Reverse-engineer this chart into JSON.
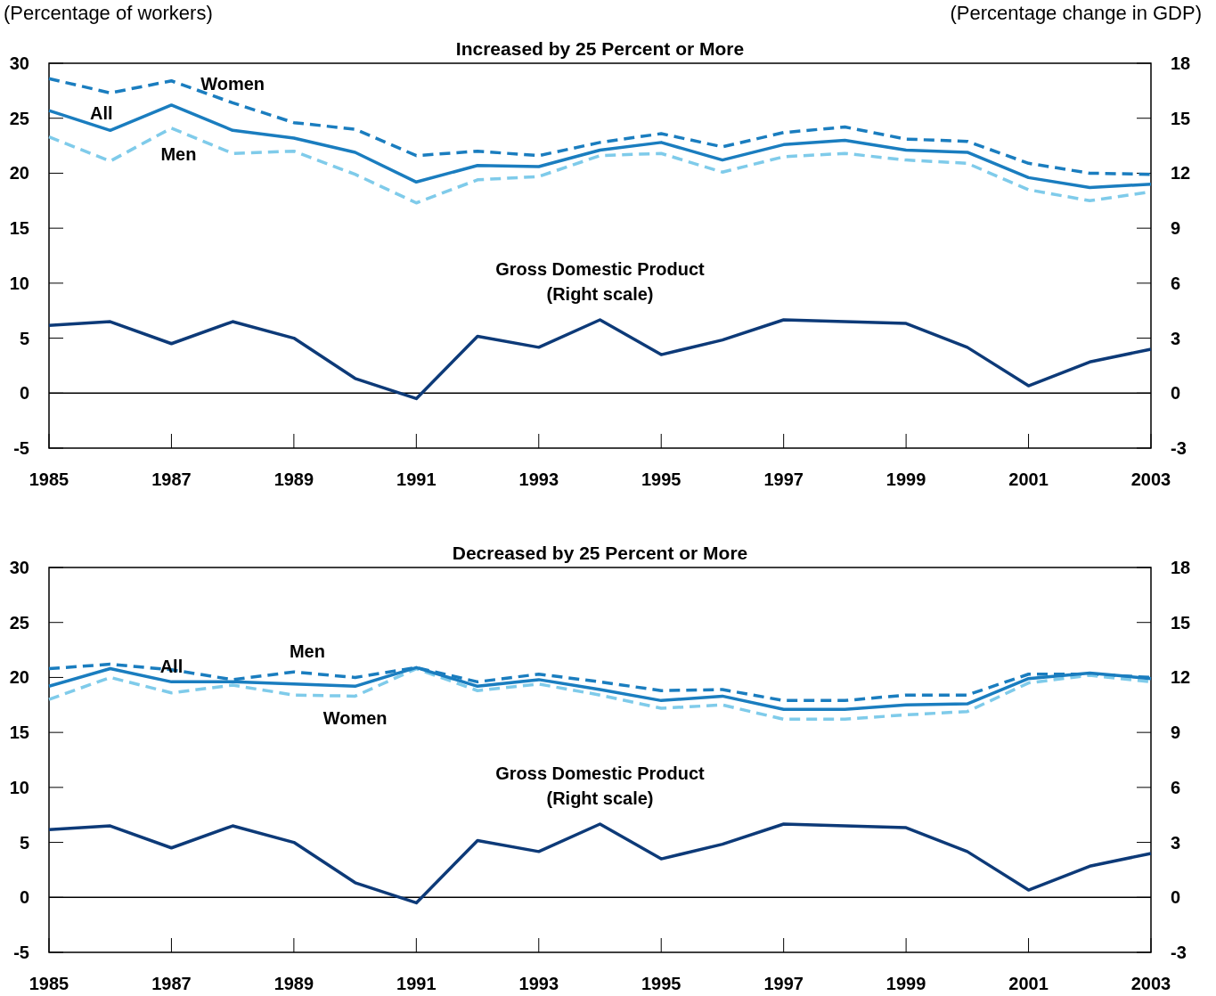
{
  "chart_data": [
    {
      "type": "line",
      "title": "Increased by 25 Percent or More",
      "ylabel": "(Percentage of workers)",
      "y2label": "(Percentage change in GDP)",
      "x": [
        1985,
        1986,
        1987,
        1988,
        1989,
        1990,
        1991,
        1992,
        1993,
        1994,
        1995,
        1996,
        1997,
        1998,
        1999,
        2000,
        2001,
        2002,
        2003
      ],
      "xlim": [
        1985,
        2003
      ],
      "xticks": [
        1985,
        1987,
        1989,
        1991,
        1993,
        1995,
        1997,
        1999,
        2001,
        2003
      ],
      "ylim": [
        -5,
        30
      ],
      "yticks": [
        -5,
        0,
        5,
        10,
        15,
        20,
        25,
        30
      ],
      "y2lim": [
        -3,
        18
      ],
      "y2ticks": [
        -3,
        0,
        3,
        6,
        9,
        12,
        15,
        18
      ],
      "grid": false,
      "marker": "none",
      "ref_lines": [
        {
          "axis": "y",
          "value": 0,
          "color": "#000000"
        }
      ],
      "annotations": [
        "(Right scale)"
      ],
      "series": [
        {
          "name": "Women",
          "color": "#1a7dbf",
          "line_style": "dashed",
          "values": [
            28.6,
            27.3,
            28.4,
            26.4,
            24.6,
            24.0,
            21.6,
            22.0,
            21.6,
            22.8,
            23.6,
            22.4,
            23.7,
            24.2,
            23.1,
            22.9,
            20.9,
            20.0,
            19.9
          ]
        },
        {
          "name": "Men",
          "color": "#7fcbea",
          "line_style": "dashed",
          "values": [
            23.3,
            21.1,
            24.1,
            21.8,
            22.0,
            19.9,
            17.3,
            19.4,
            19.7,
            21.6,
            21.8,
            20.1,
            21.5,
            21.8,
            21.2,
            20.9,
            18.5,
            17.5,
            18.3
          ]
        },
        {
          "name": "All",
          "color": "#1a7dbf",
          "line_style": "solid",
          "values": [
            25.7,
            23.9,
            26.2,
            23.9,
            23.2,
            21.9,
            19.2,
            20.7,
            20.6,
            22.1,
            22.8,
            21.2,
            22.6,
            23.0,
            22.1,
            21.9,
            19.6,
            18.7,
            19.0
          ]
        },
        {
          "name": "Gross Domestic Product",
          "color": "#0d3a78",
          "line_style": "solid",
          "axis": "y2",
          "values": [
            3.7,
            3.9,
            2.7,
            3.9,
            3.0,
            0.8,
            -0.3,
            3.1,
            2.5,
            4.0,
            2.1,
            2.9,
            4.0,
            3.9,
            3.8,
            2.5,
            0.4,
            1.7,
            2.4
          ]
        }
      ]
    },
    {
      "type": "line",
      "title": "Decreased by 25 Percent or More",
      "x": [
        1985,
        1986,
        1987,
        1988,
        1989,
        1990,
        1991,
        1992,
        1993,
        1994,
        1995,
        1996,
        1997,
        1998,
        1999,
        2000,
        2001,
        2002,
        2003
      ],
      "xlim": [
        1985,
        2003
      ],
      "xticks": [
        1985,
        1987,
        1989,
        1991,
        1993,
        1995,
        1997,
        1999,
        2001,
        2003
      ],
      "ylim": [
        -5,
        30
      ],
      "yticks": [
        -5,
        0,
        5,
        10,
        15,
        20,
        25,
        30
      ],
      "y2lim": [
        -3,
        18
      ],
      "y2ticks": [
        -3,
        0,
        3,
        6,
        9,
        12,
        15,
        18
      ],
      "grid": false,
      "marker": "none",
      "ref_lines": [
        {
          "axis": "y",
          "value": 0,
          "color": "#000000"
        }
      ],
      "annotations": [
        "(Right scale)"
      ],
      "series": [
        {
          "name": "Men",
          "color": "#1a7dbf",
          "line_style": "dashed",
          "values": [
            20.8,
            21.2,
            20.7,
            19.8,
            20.5,
            20.0,
            20.9,
            19.6,
            20.3,
            19.6,
            18.8,
            18.9,
            17.9,
            17.9,
            18.4,
            18.4,
            20.3,
            20.3,
            20.0
          ]
        },
        {
          "name": "Women",
          "color": "#7fcbea",
          "line_style": "dashed",
          "values": [
            18.0,
            20.0,
            18.6,
            19.3,
            18.4,
            18.3,
            20.8,
            18.8,
            19.4,
            18.4,
            17.2,
            17.5,
            16.2,
            16.2,
            16.6,
            16.9,
            19.5,
            20.2,
            19.6
          ]
        },
        {
          "name": "All",
          "color": "#1a7dbf",
          "line_style": "solid",
          "values": [
            19.2,
            20.8,
            19.6,
            19.6,
            19.4,
            19.2,
            20.9,
            19.2,
            19.8,
            18.9,
            17.9,
            18.3,
            17.1,
            17.1,
            17.5,
            17.6,
            19.9,
            20.4,
            19.9
          ]
        },
        {
          "name": "Gross Domestic Product",
          "color": "#0d3a78",
          "line_style": "solid",
          "axis": "y2",
          "values": [
            3.7,
            3.9,
            2.7,
            3.9,
            3.0,
            0.8,
            -0.3,
            3.1,
            2.5,
            4.0,
            2.1,
            2.9,
            4.0,
            3.9,
            3.8,
            2.5,
            0.4,
            1.7,
            2.4
          ]
        }
      ]
    }
  ]
}
